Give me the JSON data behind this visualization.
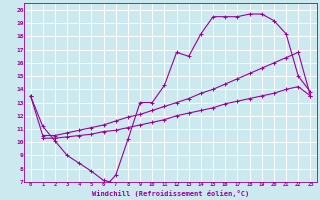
{
  "xlabel": "Windchill (Refroidissement éolien,°C)",
  "bg_color": "#cce9f0",
  "grid_color": "#ffffff",
  "line_color": "#990099",
  "xlim": [
    -0.5,
    23.5
  ],
  "ylim": [
    7,
    20.5
  ],
  "xticks": [
    0,
    1,
    2,
    3,
    4,
    5,
    6,
    7,
    8,
    9,
    10,
    11,
    12,
    13,
    14,
    15,
    16,
    17,
    18,
    19,
    20,
    21,
    22,
    23
  ],
  "yticks": [
    7,
    8,
    9,
    10,
    11,
    12,
    13,
    14,
    15,
    16,
    17,
    18,
    19,
    20
  ],
  "curve1_x": [
    0,
    1,
    2,
    3,
    4,
    5,
    6,
    6.5,
    7,
    8,
    9,
    10,
    11,
    12,
    13,
    14,
    15,
    16,
    17,
    18,
    19,
    20,
    21,
    22,
    23
  ],
  "curve1_y": [
    13.5,
    11.2,
    10.1,
    9.0,
    8.4,
    7.8,
    7.1,
    7.0,
    7.5,
    10.2,
    13.0,
    13.0,
    14.3,
    16.8,
    16.5,
    18.2,
    19.5,
    19.5,
    19.5,
    19.7,
    19.7,
    19.2,
    18.2,
    15.0,
    13.8
  ],
  "curve2_x": [
    0,
    1,
    2,
    3,
    4,
    5,
    6,
    7,
    8,
    9,
    10,
    11,
    12,
    13,
    14,
    15,
    16,
    17,
    18,
    19,
    20,
    21,
    22,
    23
  ],
  "curve2_y": [
    13.5,
    10.5,
    10.5,
    10.7,
    10.9,
    11.1,
    11.3,
    11.6,
    11.9,
    12.1,
    12.4,
    12.7,
    13.0,
    13.3,
    13.7,
    14.0,
    14.4,
    14.8,
    15.2,
    15.6,
    16.0,
    16.4,
    16.8,
    13.5
  ],
  "curve3_x": [
    1,
    2,
    3,
    4,
    5,
    6,
    7,
    8,
    9,
    10,
    11,
    12,
    13,
    14,
    15,
    16,
    17,
    18,
    19,
    20,
    21,
    22,
    23
  ],
  "curve3_y": [
    10.3,
    10.3,
    10.4,
    10.5,
    10.6,
    10.8,
    10.9,
    11.1,
    11.3,
    11.5,
    11.7,
    12.0,
    12.2,
    12.4,
    12.6,
    12.9,
    13.1,
    13.3,
    13.5,
    13.7,
    14.0,
    14.2,
    13.5
  ]
}
